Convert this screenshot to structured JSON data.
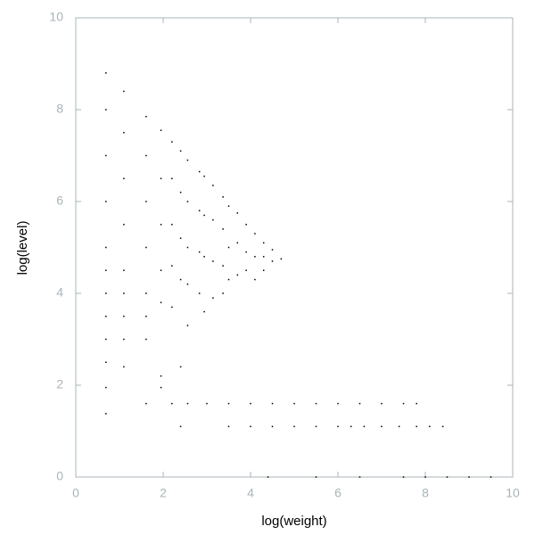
{
  "chart_data": {
    "type": "scatter",
    "x_label": "log(weight)",
    "y_label": "log(level)",
    "xlim": [
      0,
      10
    ],
    "ylim": [
      0,
      10
    ],
    "xticks": [
      0,
      2,
      4,
      6,
      8,
      10
    ],
    "yticks": [
      0,
      2,
      4,
      6,
      8,
      10
    ],
    "color": "#000000",
    "x": [
      0.69,
      0.69,
      0.69,
      0.69,
      0.69,
      0.69,
      0.69,
      0.69,
      0.69,
      0.69,
      0.69,
      0.69,
      1.1,
      1.1,
      1.1,
      1.1,
      1.1,
      1.1,
      1.1,
      1.1,
      1.1,
      1.61,
      1.61,
      1.61,
      1.61,
      1.61,
      1.61,
      1.61,
      1.61,
      1.95,
      1.95,
      1.95,
      1.95,
      1.95,
      1.95,
      1.95,
      2.2,
      2.2,
      2.2,
      2.2,
      2.2,
      2.2,
      2.4,
      2.4,
      2.4,
      2.4,
      2.4,
      2.4,
      2.56,
      2.56,
      2.56,
      2.56,
      2.56,
      2.83,
      2.83,
      2.83,
      2.83,
      2.94,
      2.94,
      2.94,
      2.94,
      3.14,
      3.14,
      3.14,
      3.14,
      3.37,
      3.37,
      3.37,
      3.37,
      3.5,
      3.5,
      3.5,
      3.7,
      3.7,
      3.7,
      3.9,
      3.9,
      3.9,
      4.1,
      4.1,
      4.1,
      4.3,
      4.3,
      4.3,
      4.5,
      4.5,
      4.7,
      2.56,
      3.0,
      3.5,
      4.0,
      4.5,
      5.0,
      5.5,
      6.0,
      6.5,
      7.0,
      7.5,
      7.8,
      3.5,
      4.0,
      4.5,
      5.0,
      5.5,
      6.0,
      6.3,
      6.6,
      7.0,
      7.4,
      7.8,
      8.1,
      8.4,
      4.4,
      5.5,
      6.5,
      7.5,
      8.0,
      8.5,
      9.0,
      9.5
    ],
    "values": [
      8.8,
      8.0,
      7.0,
      6.0,
      5.0,
      4.5,
      4.0,
      3.5,
      3.0,
      2.5,
      1.95,
      1.38,
      8.4,
      7.5,
      6.5,
      5.5,
      4.5,
      4.0,
      3.5,
      3.0,
      2.4,
      7.85,
      7.0,
      6.0,
      5.0,
      4.0,
      3.5,
      3.0,
      1.6,
      7.55,
      6.5,
      5.5,
      4.5,
      3.8,
      2.2,
      1.95,
      7.3,
      6.5,
      5.5,
      4.6,
      3.7,
      1.6,
      7.1,
      6.2,
      5.2,
      4.3,
      2.4,
      1.1,
      6.9,
      6.0,
      5.0,
      4.2,
      3.3,
      6.65,
      5.8,
      4.9,
      4.0,
      6.55,
      5.7,
      4.8,
      3.6,
      6.35,
      5.6,
      4.7,
      3.9,
      6.1,
      5.4,
      4.6,
      4.0,
      5.9,
      5.0,
      4.3,
      5.75,
      5.1,
      4.4,
      5.5,
      4.9,
      4.5,
      5.3,
      4.8,
      4.3,
      5.1,
      4.8,
      4.5,
      4.95,
      4.7,
      4.75,
      1.6,
      1.6,
      1.6,
      1.6,
      1.6,
      1.6,
      1.6,
      1.6,
      1.6,
      1.6,
      1.6,
      1.6,
      1.1,
      1.1,
      1.1,
      1.1,
      1.1,
      1.1,
      1.1,
      1.1,
      1.1,
      1.1,
      1.1,
      1.1,
      1.1,
      0,
      0,
      0,
      0,
      0,
      0,
      0,
      0
    ]
  }
}
